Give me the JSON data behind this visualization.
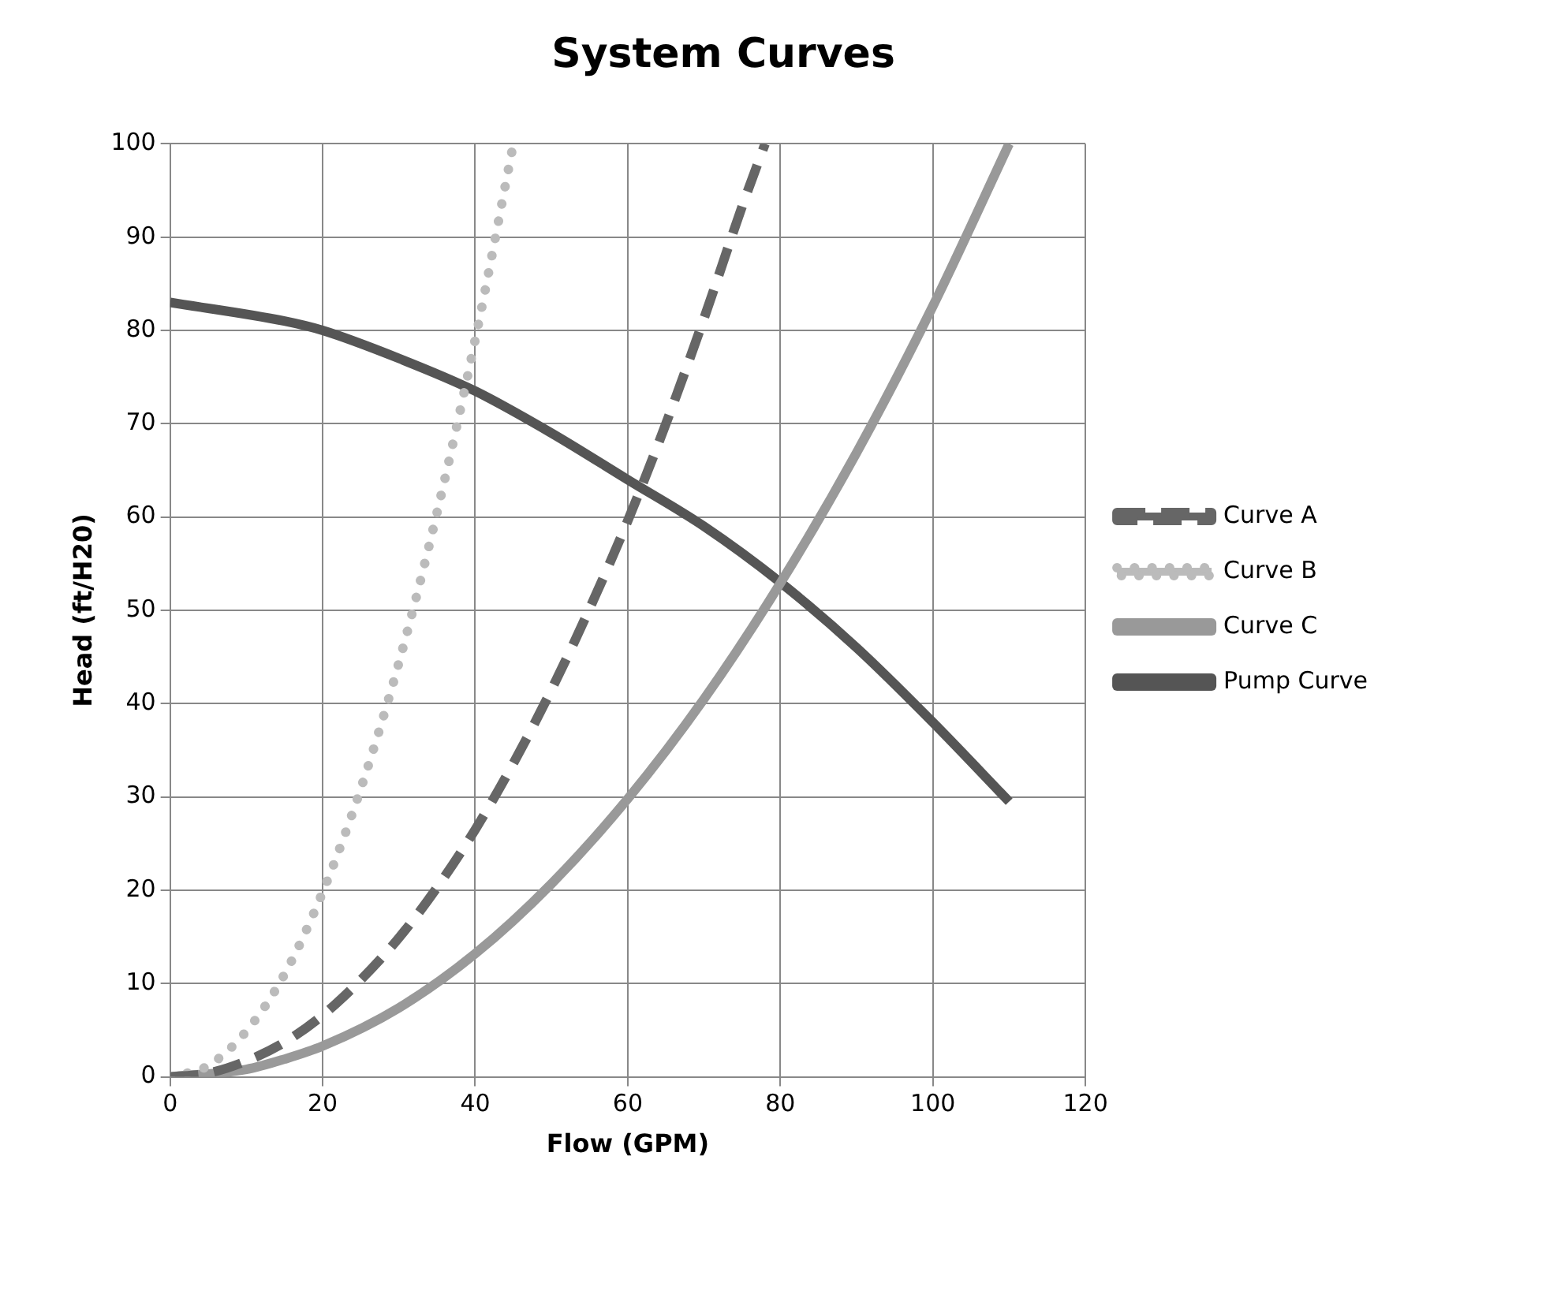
{
  "chart_data": {
    "type": "line",
    "title": "System Curves",
    "xlabel": "Flow (GPM)",
    "ylabel": "Head (ft/H20)",
    "xlim": [
      0,
      120
    ],
    "xticks": [
      0,
      20,
      40,
      60,
      80,
      100,
      120
    ],
    "ylim": [
      0,
      100
    ],
    "yticks": [
      0,
      10,
      20,
      30,
      40,
      50,
      60,
      70,
      80,
      90,
      100
    ],
    "grid": true,
    "legend": "right",
    "marker": "none",
    "series": [
      {
        "name": "Curve A",
        "color": "#666666",
        "line_style": "dashed",
        "x": [
          0,
          5,
          10,
          15,
          20,
          25,
          30,
          35,
          40,
          45,
          50,
          55,
          60,
          65,
          70,
          75,
          78
        ],
        "values": [
          0,
          0.4,
          1.7,
          3.7,
          6.6,
          10.4,
          14.9,
          20.3,
          26.5,
          33.6,
          41.5,
          50.2,
          59.6,
          70,
          81.3,
          93.3,
          100
        ]
      },
      {
        "name": "Curve B",
        "color": "#bbbbbb",
        "line_style": "dotted",
        "x": [
          0,
          5,
          10,
          15,
          20,
          25,
          30,
          35,
          40,
          45
        ],
        "values": [
          0,
          1.2,
          4.9,
          11,
          19.8,
          30.9,
          44.4,
          60.5,
          79,
          100
        ]
      },
      {
        "name": "Curve C",
        "color": "#999999",
        "line_style": "solid",
        "x": [
          0,
          10,
          15,
          20,
          30,
          40,
          50,
          60,
          70,
          80,
          90,
          100,
          110
        ],
        "values": [
          0,
          0.8,
          1.9,
          3.3,
          7.4,
          13.2,
          20.7,
          29.8,
          40.5,
          52.9,
          66.9,
          82.6,
          100
        ]
      },
      {
        "name": "Pump Curve",
        "color": "#555555",
        "line_style": "solid",
        "x": [
          0,
          15,
          20,
          30,
          40,
          50,
          60,
          70,
          80,
          90,
          100,
          110
        ],
        "values": [
          83,
          81,
          80,
          77,
          73.5,
          69,
          64,
          59,
          53,
          46,
          38,
          29.5
        ]
      }
    ]
  }
}
